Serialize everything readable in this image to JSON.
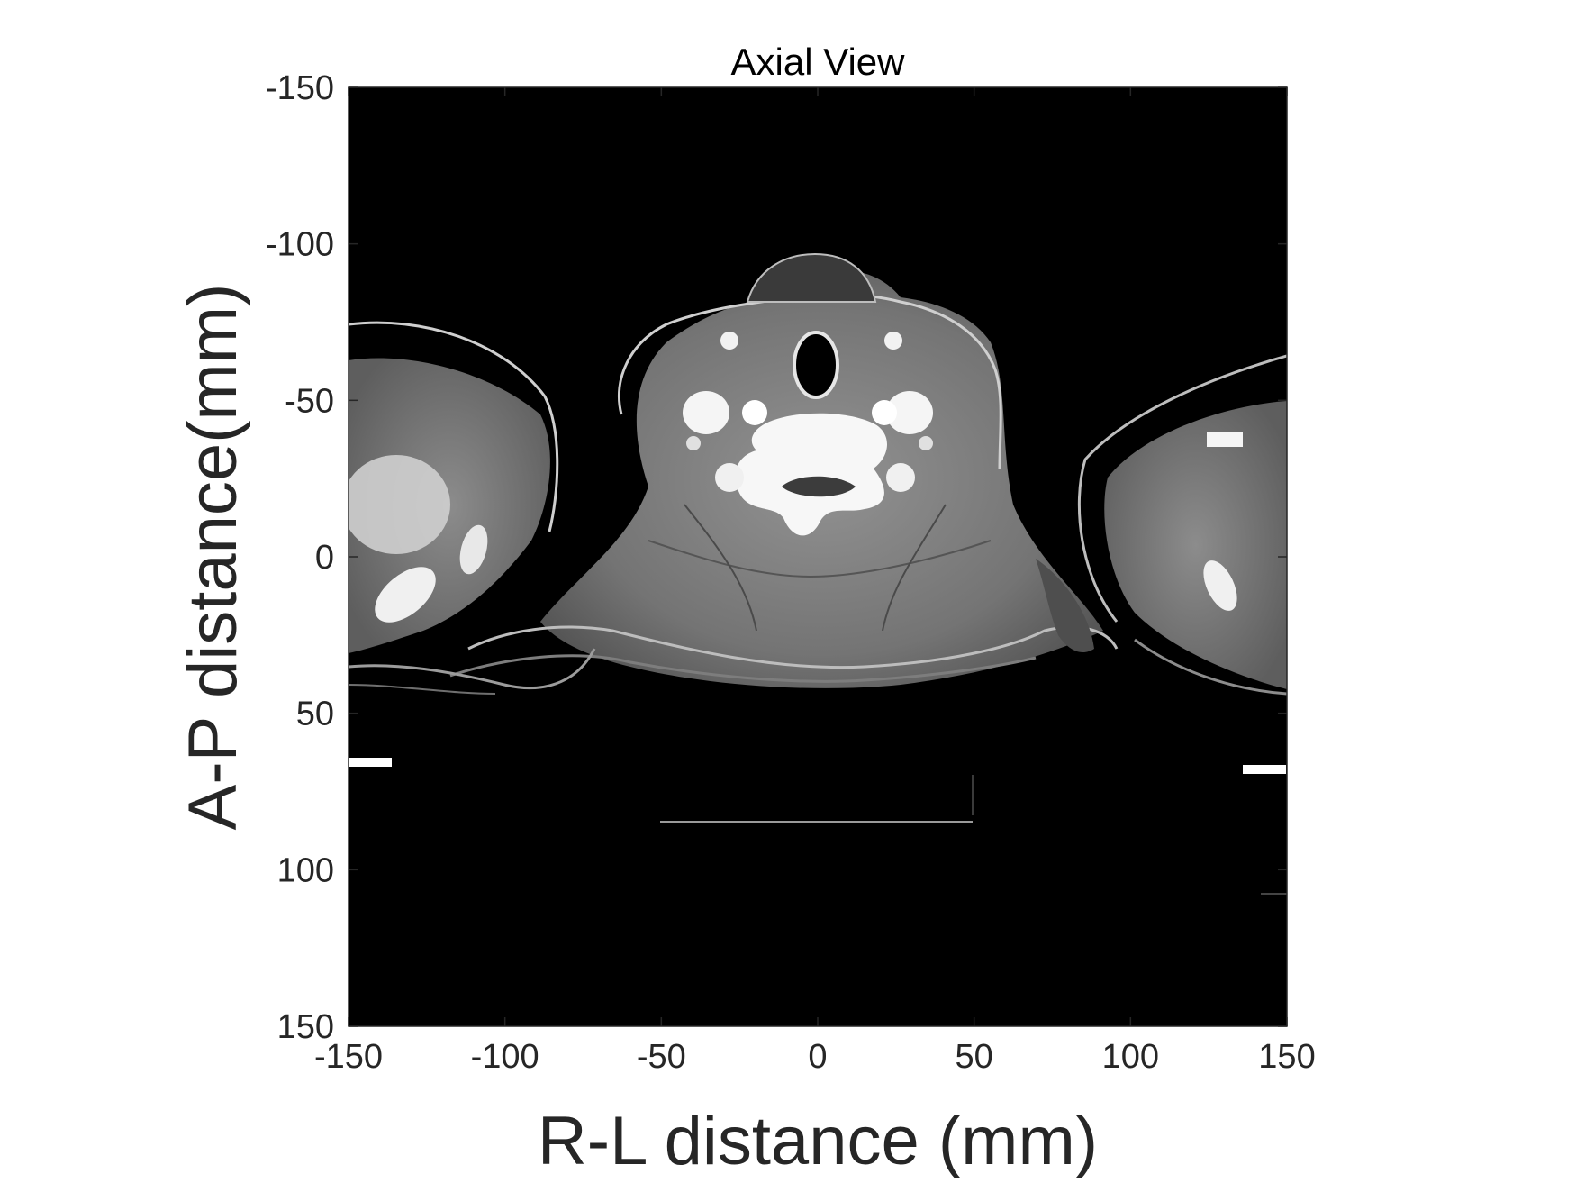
{
  "chart_data": {
    "type": "heatmap",
    "title": "Axial View",
    "xlabel": "R-L distance (mm)",
    "ylabel": "A-P distance(mm)",
    "xlim": [
      -150,
      150
    ],
    "ylim": [
      -150,
      150
    ],
    "y_direction": "reversed",
    "x_ticks": [
      -150,
      -100,
      -50,
      0,
      50,
      100,
      150
    ],
    "x_tick_labels": [
      "-150",
      "-100",
      "-50",
      "0",
      "50",
      "100",
      "150"
    ],
    "y_ticks": [
      -150,
      -100,
      -50,
      0,
      50,
      100,
      150
    ],
    "y_tick_labels": [
      "-150",
      "-100",
      "-50",
      "0",
      "50",
      "100",
      "150"
    ],
    "colormap": "gray",
    "grid": false,
    "content": "grayscale CT axial slice image of the neck region"
  },
  "colors": {
    "background": "#000000",
    "axis_text": "#262626",
    "title_text": "#000000"
  }
}
